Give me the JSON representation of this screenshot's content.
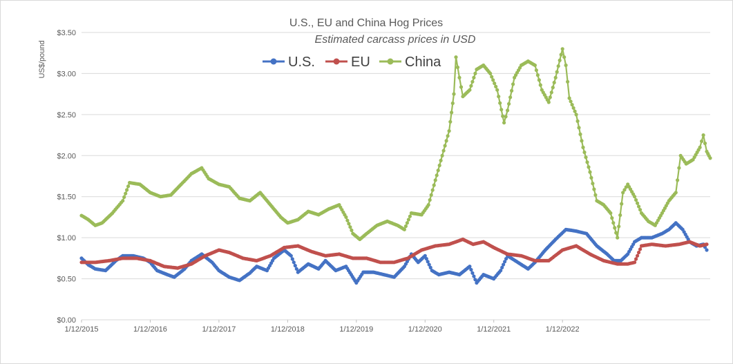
{
  "chart_data": {
    "type": "line",
    "title": "U.S., EU and China Hog Prices",
    "subtitle": "Estimated carcass prices in USD",
    "ylabel": "US$/pound",
    "xlabel": "",
    "ylim": [
      0,
      3.5
    ],
    "yticks": [
      "$0.00",
      "$0.50",
      "$1.00",
      "$1.50",
      "$2.00",
      "$2.50",
      "$3.00",
      "$3.50"
    ],
    "xticks": [
      "1/12/2015",
      "1/12/2016",
      "1/12/2017",
      "1/12/2018",
      "1/12/2019",
      "1/12/2020",
      "1/12/2021",
      "1/12/2022"
    ],
    "grid": true,
    "legend": "top-center",
    "x_unit": "year",
    "series": [
      {
        "name": "U.S.",
        "color": "#4472c4",
        "points": [
          [
            2015.0,
            0.75
          ],
          [
            2015.1,
            0.67
          ],
          [
            2015.2,
            0.62
          ],
          [
            2015.35,
            0.6
          ],
          [
            2015.5,
            0.72
          ],
          [
            2015.6,
            0.78
          ],
          [
            2015.75,
            0.78
          ],
          [
            2015.9,
            0.75
          ],
          [
            2016.0,
            0.7
          ],
          [
            2016.1,
            0.6
          ],
          [
            2016.25,
            0.55
          ],
          [
            2016.35,
            0.52
          ],
          [
            2016.5,
            0.62
          ],
          [
            2016.6,
            0.72
          ],
          [
            2016.75,
            0.8
          ],
          [
            2016.9,
            0.7
          ],
          [
            2017.0,
            0.6
          ],
          [
            2017.15,
            0.52
          ],
          [
            2017.3,
            0.48
          ],
          [
            2017.45,
            0.57
          ],
          [
            2017.55,
            0.65
          ],
          [
            2017.7,
            0.6
          ],
          [
            2017.8,
            0.75
          ],
          [
            2017.95,
            0.85
          ],
          [
            2018.05,
            0.78
          ],
          [
            2018.15,
            0.58
          ],
          [
            2018.3,
            0.68
          ],
          [
            2018.45,
            0.62
          ],
          [
            2018.55,
            0.72
          ],
          [
            2018.7,
            0.6
          ],
          [
            2018.85,
            0.65
          ],
          [
            2019.0,
            0.45
          ],
          [
            2019.1,
            0.58
          ],
          [
            2019.25,
            0.58
          ],
          [
            2019.4,
            0.55
          ],
          [
            2019.55,
            0.52
          ],
          [
            2019.7,
            0.65
          ],
          [
            2019.8,
            0.8
          ],
          [
            2019.9,
            0.7
          ],
          [
            2020.0,
            0.78
          ],
          [
            2020.1,
            0.6
          ],
          [
            2020.2,
            0.55
          ],
          [
            2020.35,
            0.58
          ],
          [
            2020.5,
            0.55
          ],
          [
            2020.65,
            0.65
          ],
          [
            2020.75,
            0.45
          ],
          [
            2020.85,
            0.55
          ],
          [
            2021.0,
            0.5
          ],
          [
            2021.1,
            0.6
          ],
          [
            2021.2,
            0.78
          ],
          [
            2021.35,
            0.7
          ],
          [
            2021.5,
            0.62
          ],
          [
            2021.6,
            0.7
          ],
          [
            2021.75,
            0.85
          ],
          [
            2021.9,
            0.98
          ],
          [
            2022.05,
            1.1
          ],
          [
            2022.2,
            1.08
          ],
          [
            2022.35,
            1.05
          ],
          [
            2022.5,
            0.9
          ],
          [
            2022.65,
            0.8
          ],
          [
            2022.75,
            0.72
          ],
          [
            2022.85,
            0.72
          ],
          [
            2022.95,
            0.8
          ],
          [
            2023.05,
            0.95
          ],
          [
            2023.15,
            1.0
          ],
          [
            2023.3,
            1.0
          ],
          [
            2023.45,
            1.05
          ],
          [
            2023.55,
            1.1
          ],
          [
            2023.65,
            1.18
          ],
          [
            2023.75,
            1.1
          ],
          [
            2023.85,
            0.95
          ],
          [
            2023.95,
            0.9
          ],
          [
            2024.05,
            0.92
          ],
          [
            2024.1,
            0.85
          ]
        ]
      },
      {
        "name": "EU",
        "color": "#c0504d",
        "points": [
          [
            2015.0,
            0.7
          ],
          [
            2015.2,
            0.7
          ],
          [
            2015.4,
            0.72
          ],
          [
            2015.6,
            0.75
          ],
          [
            2015.8,
            0.75
          ],
          [
            2016.0,
            0.72
          ],
          [
            2016.2,
            0.65
          ],
          [
            2016.4,
            0.63
          ],
          [
            2016.6,
            0.68
          ],
          [
            2016.8,
            0.78
          ],
          [
            2017.0,
            0.85
          ],
          [
            2017.15,
            0.82
          ],
          [
            2017.35,
            0.75
          ],
          [
            2017.55,
            0.72
          ],
          [
            2017.75,
            0.78
          ],
          [
            2017.95,
            0.88
          ],
          [
            2018.15,
            0.9
          ],
          [
            2018.35,
            0.83
          ],
          [
            2018.55,
            0.78
          ],
          [
            2018.75,
            0.8
          ],
          [
            2018.95,
            0.75
          ],
          [
            2019.15,
            0.75
          ],
          [
            2019.35,
            0.7
          ],
          [
            2019.55,
            0.7
          ],
          [
            2019.75,
            0.75
          ],
          [
            2019.95,
            0.85
          ],
          [
            2020.15,
            0.9
          ],
          [
            2020.35,
            0.92
          ],
          [
            2020.55,
            0.98
          ],
          [
            2020.7,
            0.92
          ],
          [
            2020.85,
            0.95
          ],
          [
            2021.0,
            0.88
          ],
          [
            2021.2,
            0.8
          ],
          [
            2021.4,
            0.78
          ],
          [
            2021.6,
            0.72
          ],
          [
            2021.8,
            0.72
          ],
          [
            2022.0,
            0.85
          ],
          [
            2022.2,
            0.9
          ],
          [
            2022.4,
            0.8
          ],
          [
            2022.6,
            0.72
          ],
          [
            2022.8,
            0.68
          ],
          [
            2022.95,
            0.68
          ],
          [
            2023.05,
            0.7
          ],
          [
            2023.15,
            0.9
          ],
          [
            2023.3,
            0.92
          ],
          [
            2023.5,
            0.9
          ],
          [
            2023.7,
            0.92
          ],
          [
            2023.85,
            0.95
          ],
          [
            2024.0,
            0.9
          ],
          [
            2024.1,
            0.92
          ]
        ]
      },
      {
        "name": "China",
        "color": "#9bbb59",
        "points": [
          [
            2015.0,
            1.27
          ],
          [
            2015.1,
            1.22
          ],
          [
            2015.2,
            1.15
          ],
          [
            2015.3,
            1.18
          ],
          [
            2015.45,
            1.3
          ],
          [
            2015.6,
            1.45
          ],
          [
            2015.7,
            1.67
          ],
          [
            2015.85,
            1.65
          ],
          [
            2016.0,
            1.55
          ],
          [
            2016.15,
            1.5
          ],
          [
            2016.3,
            1.52
          ],
          [
            2016.45,
            1.65
          ],
          [
            2016.6,
            1.78
          ],
          [
            2016.75,
            1.85
          ],
          [
            2016.85,
            1.72
          ],
          [
            2017.0,
            1.65
          ],
          [
            2017.15,
            1.62
          ],
          [
            2017.3,
            1.48
          ],
          [
            2017.45,
            1.45
          ],
          [
            2017.6,
            1.55
          ],
          [
            2017.75,
            1.4
          ],
          [
            2017.9,
            1.25
          ],
          [
            2018.0,
            1.18
          ],
          [
            2018.15,
            1.22
          ],
          [
            2018.3,
            1.32
          ],
          [
            2018.45,
            1.28
          ],
          [
            2018.6,
            1.35
          ],
          [
            2018.75,
            1.4
          ],
          [
            2018.85,
            1.25
          ],
          [
            2018.95,
            1.05
          ],
          [
            2019.05,
            0.98
          ],
          [
            2019.15,
            1.05
          ],
          [
            2019.3,
            1.15
          ],
          [
            2019.45,
            1.2
          ],
          [
            2019.6,
            1.15
          ],
          [
            2019.7,
            1.1
          ],
          [
            2019.8,
            1.3
          ],
          [
            2019.95,
            1.28
          ],
          [
            2020.05,
            1.4
          ],
          [
            2020.15,
            1.7
          ],
          [
            2020.25,
            2.0
          ],
          [
            2020.35,
            2.3
          ],
          [
            2020.42,
            2.75
          ],
          [
            2020.45,
            3.2
          ],
          [
            2020.5,
            2.95
          ],
          [
            2020.55,
            2.72
          ],
          [
            2020.65,
            2.8
          ],
          [
            2020.75,
            3.05
          ],
          [
            2020.85,
            3.1
          ],
          [
            2020.95,
            3.0
          ],
          [
            2021.05,
            2.8
          ],
          [
            2021.15,
            2.4
          ],
          [
            2021.2,
            2.55
          ],
          [
            2021.3,
            2.95
          ],
          [
            2021.4,
            3.1
          ],
          [
            2021.5,
            3.15
          ],
          [
            2021.6,
            3.1
          ],
          [
            2021.7,
            2.8
          ],
          [
            2021.8,
            2.65
          ],
          [
            2021.9,
            2.95
          ],
          [
            2022.0,
            3.3
          ],
          [
            2022.05,
            3.1
          ],
          [
            2022.1,
            2.7
          ],
          [
            2022.2,
            2.5
          ],
          [
            2022.3,
            2.1
          ],
          [
            2022.4,
            1.8
          ],
          [
            2022.5,
            1.45
          ],
          [
            2022.6,
            1.4
          ],
          [
            2022.7,
            1.3
          ],
          [
            2022.8,
            1.0
          ],
          [
            2022.88,
            1.55
          ],
          [
            2022.95,
            1.65
          ],
          [
            2023.05,
            1.5
          ],
          [
            2023.15,
            1.3
          ],
          [
            2023.25,
            1.2
          ],
          [
            2023.35,
            1.15
          ],
          [
            2023.45,
            1.3
          ],
          [
            2023.55,
            1.45
          ],
          [
            2023.65,
            1.55
          ],
          [
            2023.72,
            2.0
          ],
          [
            2023.8,
            1.9
          ],
          [
            2023.9,
            1.95
          ],
          [
            2024.0,
            2.1
          ],
          [
            2024.05,
            2.25
          ],
          [
            2024.1,
            2.05
          ],
          [
            2024.15,
            1.97
          ]
        ]
      }
    ]
  }
}
